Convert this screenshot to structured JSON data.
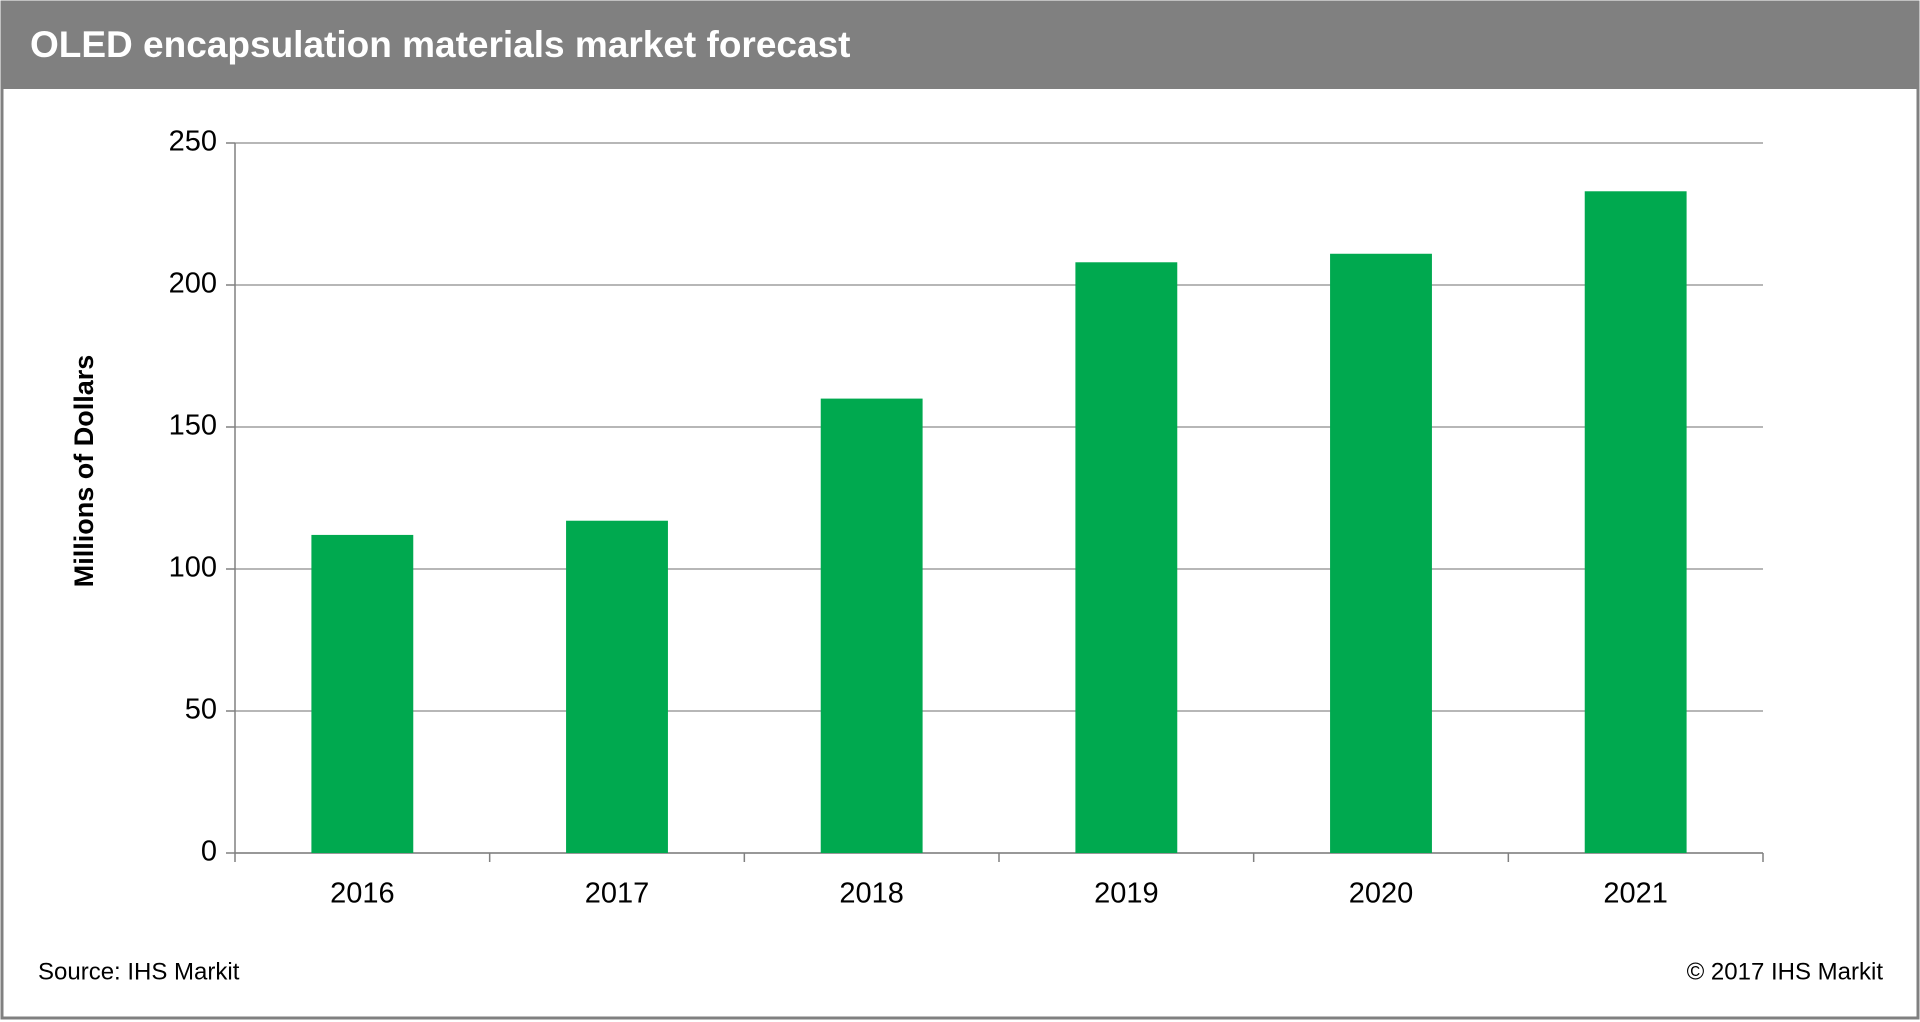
{
  "chart_data": {
    "type": "bar",
    "title": "OLED encapsulation materials market forecast",
    "y_label": "Millions  of Dollars",
    "source": "Source: IHS Markit",
    "copyright": "© 2017 IHS Markit",
    "categories": [
      "2016",
      "2017",
      "2018",
      "2019",
      "2020",
      "2021"
    ],
    "values": [
      112,
      117,
      160,
      208,
      211,
      233
    ],
    "color": "#00a94f",
    "ylim": [
      0,
      250
    ],
    "yticks": [
      0,
      50,
      100,
      150,
      200,
      250
    ],
    "grid": true
  }
}
